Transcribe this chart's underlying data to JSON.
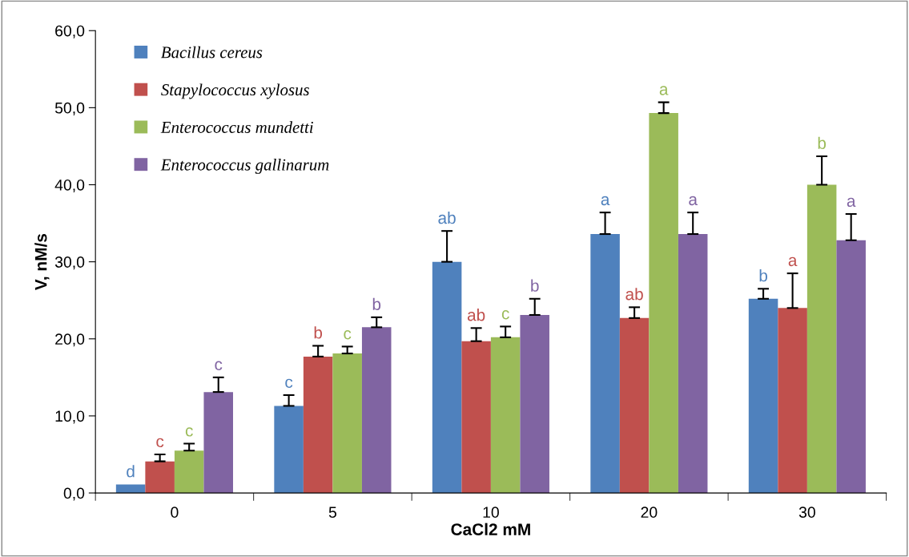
{
  "chart_data": {
    "type": "bar",
    "xlabel": "CaCl2 mM",
    "ylabel": "V, nM/s",
    "categories": [
      "0",
      "5",
      "10",
      "20",
      "30"
    ],
    "ylim": [
      0,
      60
    ],
    "yticks": [
      {
        "value": 0,
        "label": "0,0"
      },
      {
        "value": 10,
        "label": "10,0"
      },
      {
        "value": 20,
        "label": "20,0"
      },
      {
        "value": 30,
        "label": "30,0"
      },
      {
        "value": 40,
        "label": "40,0"
      },
      {
        "value": 50,
        "label": "50,0"
      },
      {
        "value": 60,
        "label": "60,0"
      }
    ],
    "grid": false,
    "legend": "top left",
    "series": [
      {
        "name": "Bacillus cereus",
        "color": "#4f81bd",
        "values": [
          1.1,
          11.3,
          30.0,
          33.6,
          25.2
        ],
        "errors": [
          null,
          [
            11.3,
            12.7
          ],
          [
            30.0,
            34.0
          ],
          [
            33.6,
            36.4
          ],
          [
            25.2,
            26.5
          ]
        ],
        "value_labels": [
          "d",
          "c",
          "ab",
          "a",
          "b"
        ]
      },
      {
        "name": "Stapylococcus xylosus",
        "color": "#c0504d",
        "values": [
          4.1,
          17.7,
          19.7,
          22.7,
          24.0
        ],
        "errors": [
          [
            4.1,
            5.0
          ],
          [
            17.7,
            19.1
          ],
          [
            19.7,
            21.4
          ],
          [
            22.7,
            24.1
          ],
          [
            24.0,
            28.5
          ]
        ],
        "value_labels": [
          "c",
          "b",
          "ab",
          "ab",
          "a"
        ]
      },
      {
        "name": "Enterococcus mundetti",
        "color": "#9bbb59",
        "values": [
          5.5,
          18.1,
          20.2,
          49.3,
          40.0
        ],
        "errors": [
          [
            5.5,
            6.4
          ],
          [
            18.1,
            19.0
          ],
          [
            20.2,
            21.6
          ],
          [
            49.3,
            50.7
          ],
          [
            40.0,
            43.7
          ]
        ],
        "value_labels": [
          "c",
          "c",
          "c",
          "a",
          "b"
        ]
      },
      {
        "name": "Enterococcus gallinarum",
        "color": "#8064a2",
        "values": [
          13.1,
          21.5,
          23.1,
          33.6,
          32.8
        ],
        "errors": [
          [
            13.1,
            15.0
          ],
          [
            21.5,
            22.8
          ],
          [
            23.1,
            25.2
          ],
          [
            33.6,
            36.4
          ],
          [
            32.8,
            36.2
          ]
        ],
        "value_labels": [
          "c",
          "b",
          "b",
          "a",
          "a"
        ]
      }
    ]
  }
}
